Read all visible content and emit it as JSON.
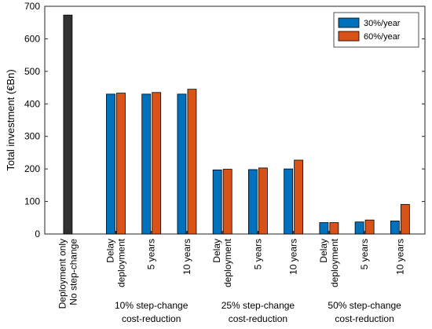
{
  "chart_data": {
    "type": "bar",
    "ylabel": "Total investment (€Bn)",
    "ylim": [
      0,
      700
    ],
    "yticks": [
      0,
      100,
      200,
      300,
      400,
      500,
      600,
      700
    ],
    "grid": false,
    "legend_position": "top-right",
    "categories": [
      {
        "label": [
          "Deployment only",
          "No step-change"
        ]
      },
      {
        "label": [
          "Delay",
          "deployment"
        ]
      },
      {
        "label": [
          "5 years"
        ]
      },
      {
        "label": [
          "10 years"
        ]
      },
      {
        "label": [
          "Delay",
          "deployment"
        ]
      },
      {
        "label": [
          "5 years"
        ]
      },
      {
        "label": [
          "10 years"
        ]
      },
      {
        "label": [
          "Delay",
          "deployment"
        ]
      },
      {
        "label": [
          "5 years"
        ]
      },
      {
        "label": [
          "10 years"
        ]
      }
    ],
    "group_labels": [
      {
        "lines": [
          "10% step-change",
          "cost-reduction"
        ],
        "span": [
          1,
          3
        ]
      },
      {
        "lines": [
          "25% step-change",
          "cost-reduction"
        ],
        "span": [
          4,
          6
        ]
      },
      {
        "lines": [
          "50% step-change",
          "cost-reduction"
        ],
        "span": [
          7,
          9
        ]
      }
    ],
    "baseline": {
      "category_index": 0,
      "value": 673,
      "color": "#333333"
    },
    "series": [
      {
        "name": "30%/year",
        "color": "#0072BD",
        "values": [
          null,
          430,
          430,
          430,
          197,
          198,
          200,
          35,
          37,
          40
        ]
      },
      {
        "name": "60%/year",
        "color": "#D95319",
        "values": [
          null,
          433,
          435,
          445,
          199,
          203,
          227,
          35,
          43,
          91
        ]
      }
    ]
  }
}
